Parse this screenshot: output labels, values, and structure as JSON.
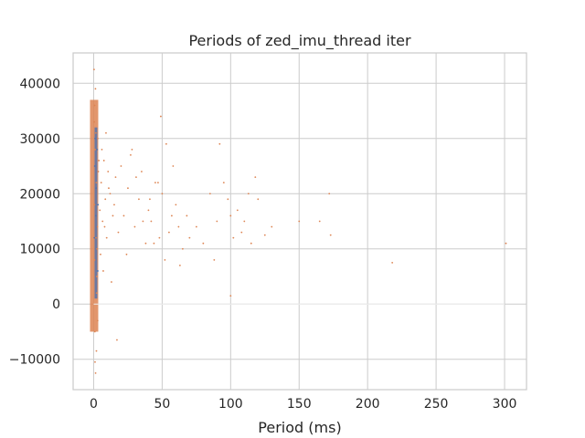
{
  "chart_data": {
    "type": "scatter",
    "title": "Periods of zed_imu_thread iter",
    "xlabel": "Period (ms)",
    "ylabel": "",
    "xlim": [
      -15,
      316
    ],
    "ylim": [
      -15500,
      45500
    ],
    "x_ticks": [
      0,
      50,
      100,
      150,
      200,
      250,
      300
    ],
    "y_ticks": [
      -10000,
      0,
      10000,
      20000,
      30000,
      40000
    ],
    "x_tick_labels": [
      "0",
      "50",
      "100",
      "150",
      "200",
      "250",
      "300"
    ],
    "y_tick_labels": [
      "−10000",
      "0",
      "10000",
      "20000",
      "30000",
      "40000"
    ],
    "grid": true,
    "legend": "none",
    "colors": {
      "series_main": "#dd8452",
      "series_baseline": "#4c72b0",
      "grid": "#cccccc",
      "background": "#ffffff"
    },
    "series": [
      {
        "color": "#4c72b0",
        "marker": "dot",
        "x": [
          0.5,
          0.8,
          1.0,
          1.2,
          1.5,
          1.8,
          2.0,
          2.3,
          2.6,
          3.0,
          3.2
        ],
        "y": [
          12000,
          25000,
          30000,
          8000,
          16000,
          21000,
          2000,
          14000,
          28000,
          6000,
          18000
        ]
      },
      {
        "color": "#dd8452",
        "marker": "dot",
        "x": [
          0.4,
          0.7,
          1.1,
          1.6,
          2.2,
          2.9,
          3.4,
          0.9,
          1.3,
          2.5,
          0.6,
          1.9,
          2.7,
          3.8,
          0.3,
          1.4,
          2.1,
          0.8,
          3.0,
          1.7,
          4.5,
          5.5,
          6.5,
          7.5,
          8.5,
          9.5,
          10.5,
          12.0,
          14.0,
          16.0,
          5.0,
          6.0,
          7.0,
          8.0,
          9.0,
          11.0,
          13.0,
          15.0,
          18.0,
          20.0,
          22,
          25,
          28,
          30,
          33,
          35,
          38,
          40,
          42,
          45,
          48,
          50,
          52,
          55,
          58,
          60,
          62,
          65,
          68,
          70,
          24,
          27,
          31,
          36,
          41,
          44,
          47,
          53,
          57,
          63,
          75,
          80,
          85,
          88,
          90,
          92,
          95,
          98,
          100,
          102,
          105,
          108,
          110,
          113,
          115,
          118,
          120,
          125,
          130,
          150,
          165,
          172,
          173,
          218,
          301,
          49,
          17,
          100,
          2,
          1
        ],
        "y": [
          33000,
          36000,
          28000,
          31000,
          5000,
          -3000,
          24000,
          -5000,
          39000,
          10000,
          18000,
          22000,
          14000,
          26000,
          42500,
          -12500,
          2000,
          8000,
          30000,
          12000,
          17000,
          22000,
          15000,
          26000,
          19000,
          12000,
          24000,
          20000,
          16000,
          23000,
          9000,
          28000,
          6000,
          14000,
          31000,
          21000,
          4000,
          18000,
          13000,
          25000,
          16000,
          21000,
          28000,
          14000,
          19000,
          24000,
          11000,
          17000,
          15000,
          22000,
          12000,
          20000,
          8000,
          13000,
          25000,
          18000,
          14000,
          10000,
          16000,
          12000,
          9000,
          27000,
          23000,
          15000,
          19000,
          11000,
          22000,
          29000,
          16000,
          7000,
          14000,
          11000,
          20000,
          8000,
          15000,
          29000,
          22000,
          19000,
          16000,
          12000,
          17000,
          13000,
          15000,
          20000,
          11000,
          23000,
          19000,
          12500,
          14000,
          15000,
          15000,
          20000,
          12500,
          7500,
          11000,
          34000,
          -6500,
          1500,
          -8500,
          -10500
        ]
      }
    ]
  }
}
